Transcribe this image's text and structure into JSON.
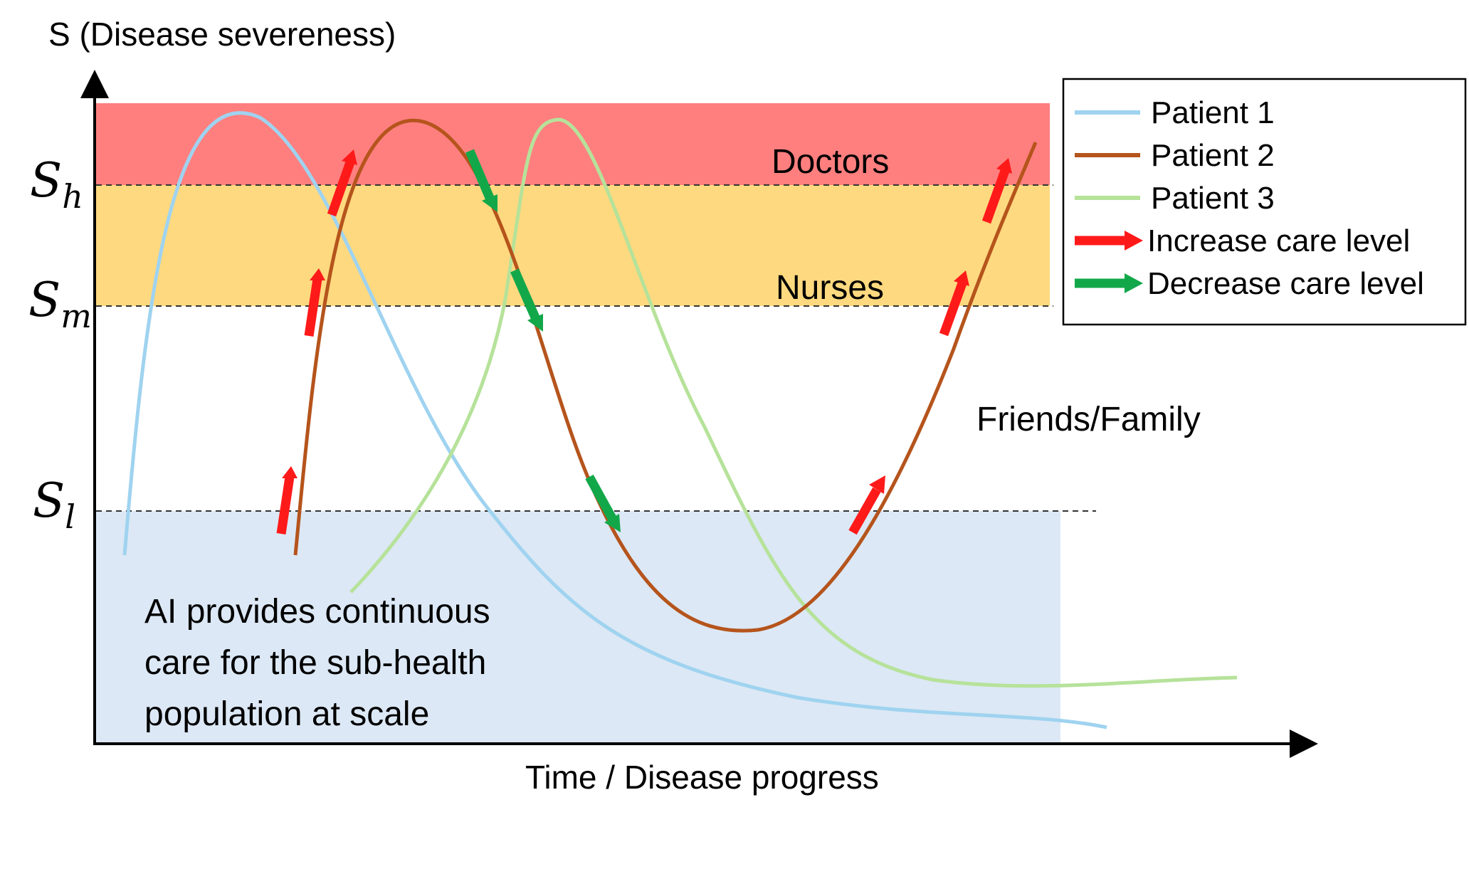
{
  "axes": {
    "y_label": "S (Disease severeness)",
    "x_label": "Time / Disease progress"
  },
  "thresholds": [
    {
      "symbol": "S",
      "subscript": "h"
    },
    {
      "symbol": "S",
      "subscript": "m"
    },
    {
      "symbol": "S",
      "subscript": "l"
    }
  ],
  "zones": {
    "doctors": {
      "label": "Doctors",
      "color": "#ff7f7f"
    },
    "nurses": {
      "label": "Nurses",
      "color": "#ffd97f"
    },
    "friends_family": {
      "label": "Friends/Family"
    },
    "ai": {
      "lines": [
        "AI provides continuous",
        "care for the sub-health",
        "population at scale"
      ],
      "color": "#dce8f5"
    }
  },
  "legend": {
    "items": [
      {
        "label": "Patient 1",
        "color": "#9fd3f0",
        "kind": "line"
      },
      {
        "label": "Patient 2",
        "color": "#b5541c",
        "kind": "line"
      },
      {
        "label": "Patient 3",
        "color": "#b6e29a",
        "kind": "line"
      },
      {
        "label": "Increase care level",
        "color": "#ff1a1a",
        "kind": "arrow"
      },
      {
        "label": "Decrease care level",
        "color": "#12a84a",
        "kind": "arrow"
      }
    ]
  }
}
